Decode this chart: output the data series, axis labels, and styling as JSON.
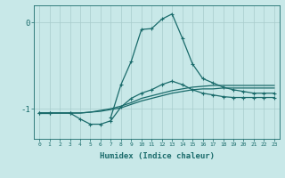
{
  "bg_color": "#c8e8e8",
  "line_color": "#1a6b6b",
  "grid_color": "#a8cccc",
  "xlabel": "Humidex (Indice chaleur)",
  "yticks": [
    0,
    -1
  ],
  "ylim": [
    -1.35,
    0.2
  ],
  "xlim": [
    -0.5,
    23.5
  ],
  "peak_x": [
    0,
    1,
    2,
    3,
    4,
    5,
    6,
    7,
    8,
    9,
    10,
    11,
    12,
    13,
    14,
    15,
    16,
    17,
    18,
    19,
    20,
    21,
    22,
    23
  ],
  "peak_y": [
    -1.05,
    -1.05,
    null,
    -1.05,
    null,
    null,
    null,
    -1.1,
    -0.72,
    -0.45,
    -0.08,
    -0.07,
    0.04,
    0.1,
    -0.18,
    -0.48,
    -0.65,
    -0.7,
    -0.75,
    -0.78,
    -0.8,
    -0.82,
    -0.82,
    -0.82
  ],
  "lower_x": [
    0,
    1,
    3,
    4,
    5,
    6,
    7,
    8,
    9,
    10,
    11,
    12,
    13,
    14,
    15,
    16,
    17,
    18,
    19,
    20,
    21,
    22,
    23
  ],
  "lower_y": [
    -1.05,
    -1.05,
    -1.05,
    -1.12,
    -1.18,
    -1.18,
    -1.14,
    -0.98,
    -0.88,
    -0.82,
    -0.78,
    -0.72,
    -0.68,
    -0.72,
    -0.78,
    -0.82,
    -0.84,
    -0.86,
    -0.87,
    -0.87,
    -0.87,
    -0.87,
    -0.87
  ],
  "flat1_x": [
    0,
    1,
    2,
    3,
    4,
    5,
    6,
    7,
    8,
    9,
    10,
    11,
    12,
    13,
    14,
    15,
    16,
    17,
    18,
    19,
    20,
    21,
    22,
    23
  ],
  "flat1_y": [
    -1.05,
    -1.05,
    -1.05,
    -1.05,
    -1.05,
    -1.04,
    -1.02,
    -1.0,
    -0.97,
    -0.93,
    -0.88,
    -0.85,
    -0.82,
    -0.79,
    -0.77,
    -0.75,
    -0.74,
    -0.73,
    -0.73,
    -0.73,
    -0.73,
    -0.73,
    -0.73,
    -0.73
  ],
  "flat2_x": [
    0,
    1,
    2,
    3,
    4,
    5,
    6,
    7,
    8,
    9,
    10,
    11,
    12,
    13,
    14,
    15,
    16,
    17,
    18,
    19,
    20,
    21,
    22,
    23
  ],
  "flat2_y": [
    -1.05,
    -1.05,
    -1.05,
    -1.05,
    -1.05,
    -1.04,
    -1.03,
    -1.01,
    -0.99,
    -0.95,
    -0.91,
    -0.88,
    -0.85,
    -0.82,
    -0.8,
    -0.78,
    -0.77,
    -0.77,
    -0.76,
    -0.76,
    -0.76,
    -0.76,
    -0.76,
    -0.76
  ]
}
